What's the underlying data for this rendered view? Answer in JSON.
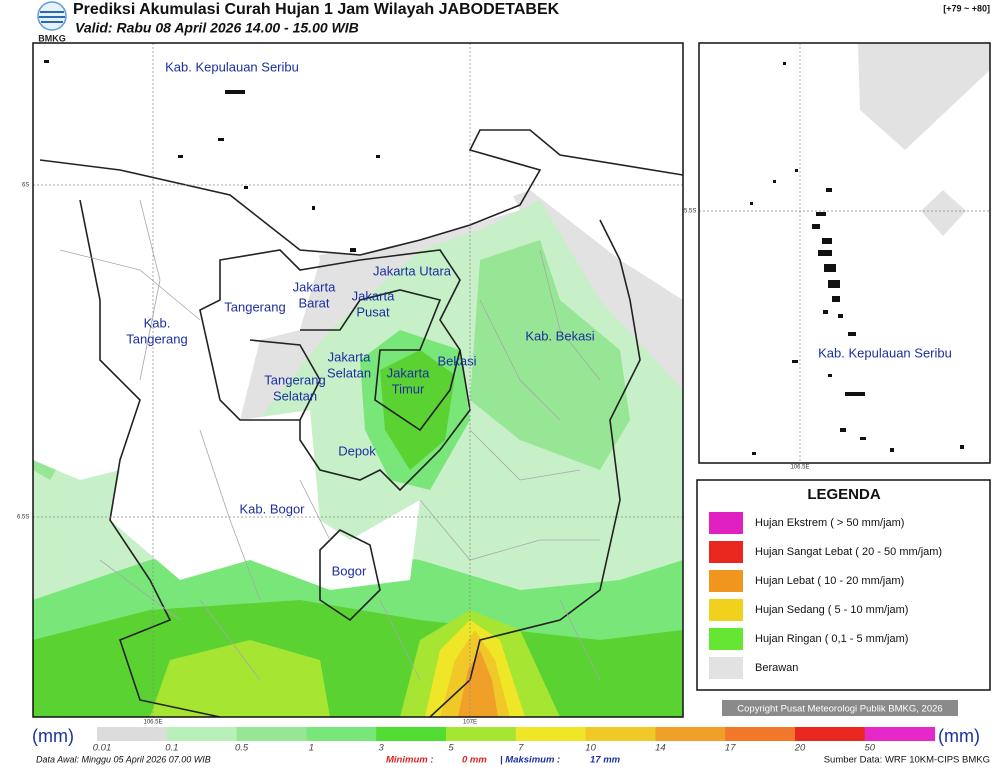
{
  "header": {
    "logo_text": "BMKG",
    "title": "Prediksi Akumulasi Curah Hujan 1 Jam Wilayah JABODETABEK",
    "subtitle": "Valid: Rabu 08 April 2026 14.00 - 15.00 WIB",
    "code": "[+79 ~ +80]"
  },
  "map": {
    "labels": [
      {
        "lines": [
          "Kab. Kepulauan Seribu"
        ]
      },
      {
        "lines": [
          "Jakarta Utara"
        ]
      },
      {
        "lines": [
          "Jakarta",
          "Barat"
        ]
      },
      {
        "lines": [
          "Jakarta",
          "Pusat"
        ]
      },
      {
        "lines": [
          "Tangerang"
        ]
      },
      {
        "lines": [
          "Kab.",
          "Tangerang"
        ]
      },
      {
        "lines": [
          "Kab. Bekasi"
        ]
      },
      {
        "lines": [
          "Jakarta",
          "Selatan"
        ]
      },
      {
        "lines": [
          "Bekasi"
        ]
      },
      {
        "lines": [
          "Jakarta",
          "Timur"
        ]
      },
      {
        "lines": [
          "Tangerang",
          "Selatan"
        ]
      },
      {
        "lines": [
          "Depok"
        ]
      },
      {
        "lines": [
          "Kab. Bogor"
        ]
      },
      {
        "lines": [
          "Bogor"
        ]
      }
    ],
    "coords": [
      "6S",
      "6.5S",
      "106.5E",
      "107E"
    ]
  },
  "inset": {
    "label": "Kab. Kepulauan Seribu",
    "coords": [
      "5.5S",
      "106.5E"
    ]
  },
  "legend": {
    "title": "LEGENDA",
    "items": [
      "Hujan Ekstrem ( > 50 mm/jam)",
      "Hujan Sangat Lebat ( 20 - 50 mm/jam)",
      "Hujan Lebat ( 10 - 20 mm/jam)",
      "Hujan Sedang ( 5 - 10 mm/jam)",
      "Hujan Ringan ( 0,1 - 5 mm/jam)",
      "Berawan"
    ]
  },
  "copyright": "Copyright Pusat Meteorologi Publik BMKG, 2026",
  "colorbar": {
    "unit": "(mm)",
    "ticks": [
      0.01,
      0.1,
      0.5,
      1,
      3,
      5,
      7,
      10,
      14,
      17,
      20,
      50
    ]
  },
  "footer": {
    "data_awal": "Data Awal: Minggu 05 April 2026 07.00 WIB",
    "minimum_label": "Minimum :",
    "minimum": "0 mm",
    "maximum_label": "| Maksimum :",
    "maximum": "17 mm",
    "source": "Sumber Data: WRF 10KM-CIPS BMKG"
  }
}
